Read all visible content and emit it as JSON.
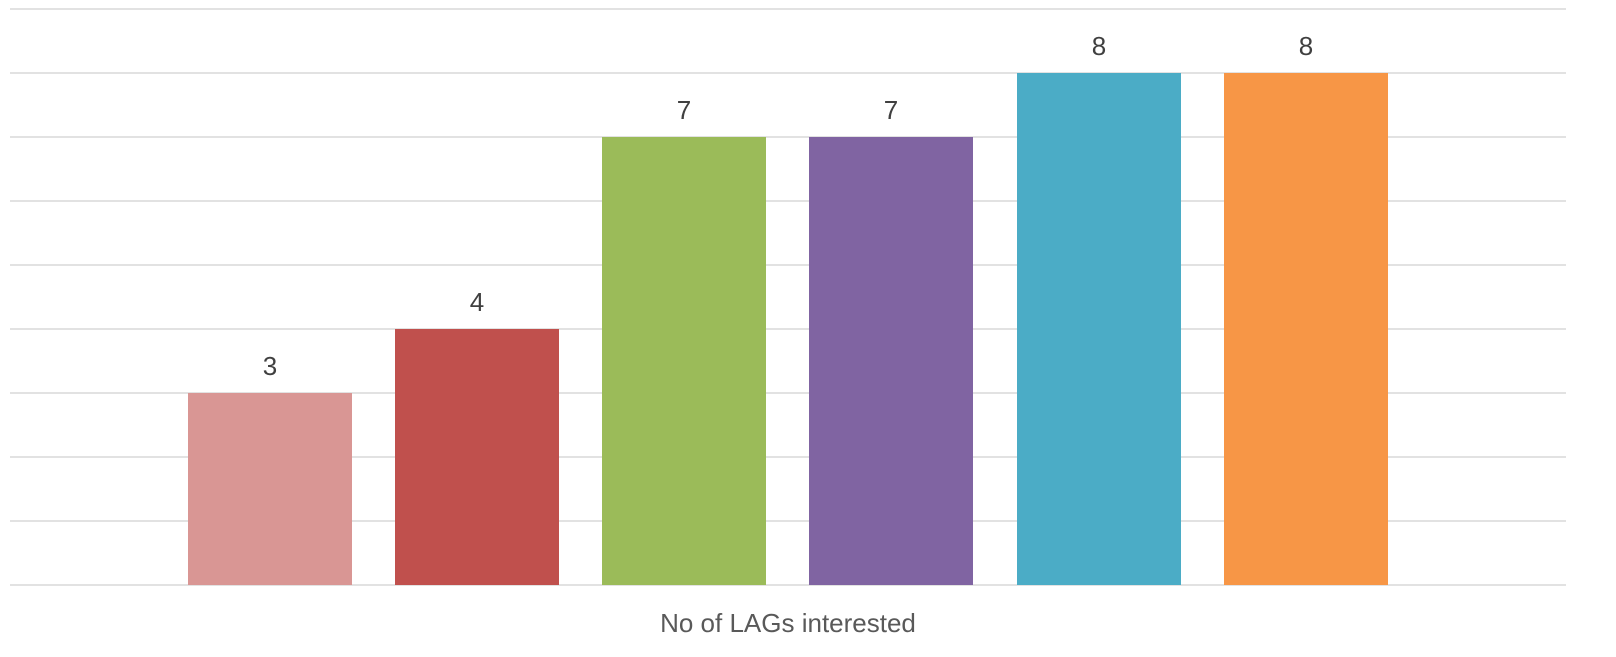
{
  "chart_data": {
    "type": "bar",
    "categories": [
      "",
      "",
      "",
      "",
      "",
      ""
    ],
    "values": [
      3,
      4,
      7,
      7,
      8,
      8
    ],
    "colors": [
      "#d99694",
      "#c0504d",
      "#9bbb59",
      "#8064a2",
      "#4bacc6",
      "#f79646"
    ],
    "title": "",
    "xlabel": "No of LAGs interested",
    "ylabel": "",
    "ylim": [
      0,
      9
    ],
    "grid": true,
    "gridline_color": "#d9d9d9",
    "show_data_labels": true,
    "legend": "none"
  }
}
